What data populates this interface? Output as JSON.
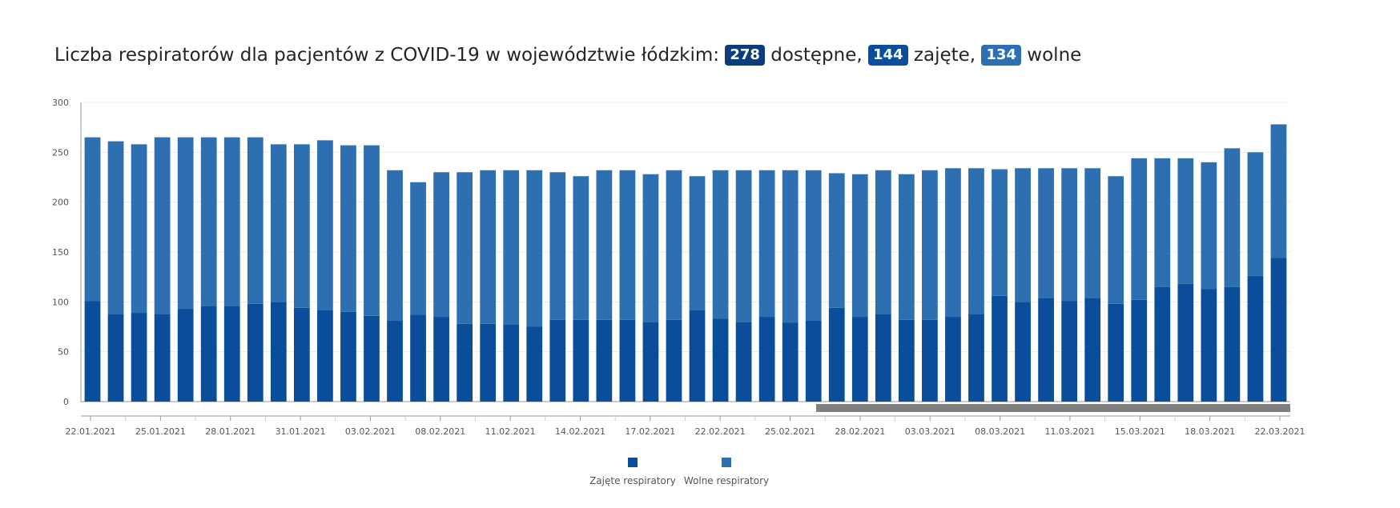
{
  "header": {
    "title_prefix": "Liczba respiratorów dla pacjentów z COVID-19 w województwie łódzkim:",
    "available_value": "278",
    "available_label": "dostępne,",
    "occupied_value": "144",
    "occupied_label": "zajęte,",
    "free_value": "134",
    "free_label": "wolne",
    "available_color": "#0b3c7c",
    "occupied_color": "#0a4d9a",
    "free_color": "#2e6fb1"
  },
  "legend": {
    "occupied": "Zajęte respiratory",
    "free": "Wolne respiratory"
  },
  "chart_data": {
    "type": "bar",
    "stacked": true,
    "ylim": [
      0,
      300
    ],
    "yticks": [
      0,
      50,
      100,
      150,
      200,
      250,
      300
    ],
    "grid": true,
    "legend_position": "bottom",
    "has_scrollbar": true,
    "x_tick_labels": [
      "22.01.2021",
      "25.01.2021",
      "28.01.2021",
      "31.01.2021",
      "03.02.2021",
      "08.02.2021",
      "11.02.2021",
      "14.02.2021",
      "17.02.2021",
      "22.02.2021",
      "25.02.2021",
      "28.02.2021",
      "03.03.2021",
      "08.03.2021",
      "11.03.2021",
      "15.03.2021",
      "18.03.2021",
      "22.03.2021"
    ],
    "series": [
      {
        "name": "Zajęte respiratory",
        "color": "#0a4d9a",
        "values": [
          101,
          88,
          89,
          88,
          93,
          96,
          96,
          98,
          100,
          94,
          92,
          90,
          86,
          81,
          87,
          85,
          78,
          78,
          77,
          75,
          82,
          82,
          82,
          82,
          80,
          82,
          92,
          83,
          80,
          85,
          79,
          81,
          94,
          85,
          88,
          82,
          82,
          85,
          88,
          106,
          100,
          104,
          101,
          104,
          98,
          102,
          115,
          118,
          113,
          115,
          126,
          144
        ]
      },
      {
        "name": "Wolne respiratory",
        "color": "#2e6fb1",
        "values": [
          164,
          173,
          169,
          177,
          172,
          169,
          169,
          167,
          158,
          164,
          170,
          167,
          171,
          151,
          133,
          145,
          152,
          154,
          155,
          157,
          148,
          144,
          150,
          150,
          148,
          150,
          134,
          149,
          152,
          147,
          153,
          151,
          135,
          143,
          144,
          146,
          150,
          149,
          146,
          127,
          134,
          130,
          133,
          130,
          128,
          142,
          129,
          126,
          127,
          139,
          124,
          134
        ]
      }
    ]
  }
}
